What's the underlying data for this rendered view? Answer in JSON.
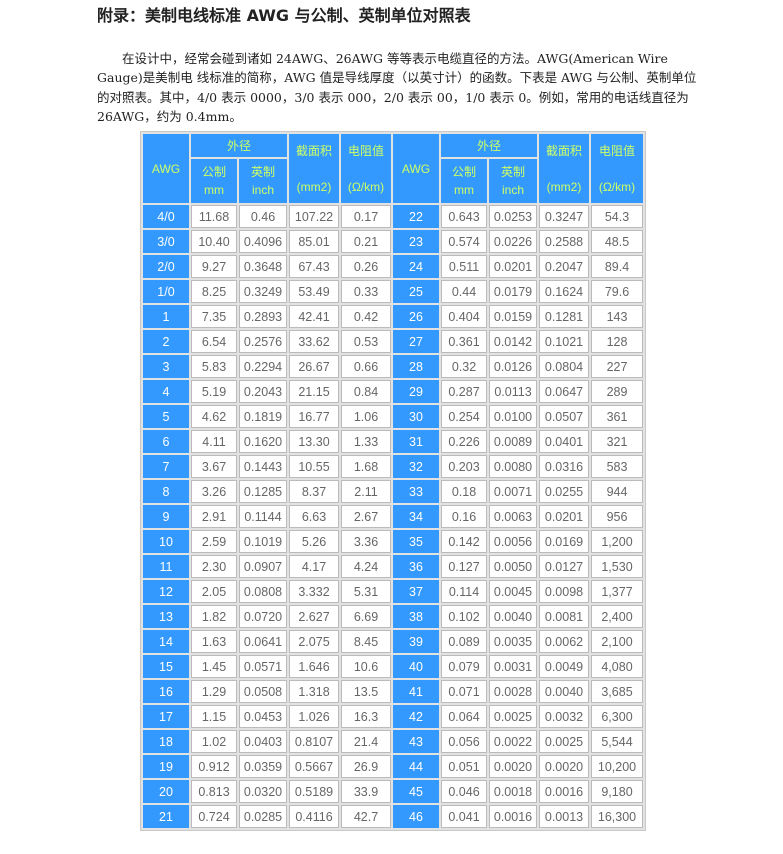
{
  "title": "附录：美制电线标准 AWG 与公制、英制单位对照表",
  "intro": "在设计中，经常会碰到诸如 24AWG、26AWG 等等表示电缆直径的方法。AWG(American Wire Gauge)是美制电 线标准的简称，AWG 值是导线厚度（以英寸计）的函数。下表是 AWG 与公制、英制单位的对照表。其中，4/0 表示 0000，3/0 表示 000，2/0 表示 00，1/0 表示 0。例如，常用的电话线直径为 26AWG，约为 0.4mm。",
  "headers": {
    "awg": "AWG",
    "od": "外径",
    "metric": "公制",
    "metric_unit": "mm",
    "imperial": "英制",
    "imperial_unit": "inch",
    "area": "截面积",
    "area_unit": "(mm2)",
    "res": "电阻值",
    "res_unit": "(Ω/km)"
  },
  "colors": {
    "header_bg": "#3399ff",
    "header_text": "#ccff66"
  },
  "rows": [
    [
      "4/0",
      "11.68",
      "0.46",
      "107.22",
      "0.17",
      "22",
      "0.643",
      "0.0253",
      "0.3247",
      "54.3"
    ],
    [
      "3/0",
      "10.40",
      "0.4096",
      "85.01",
      "0.21",
      "23",
      "0.574",
      "0.0226",
      "0.2588",
      "48.5"
    ],
    [
      "2/0",
      "9.27",
      "0.3648",
      "67.43",
      "0.26",
      "24",
      "0.511",
      "0.0201",
      "0.2047",
      "89.4"
    ],
    [
      "1/0",
      "8.25",
      "0.3249",
      "53.49",
      "0.33",
      "25",
      "0.44",
      "0.0179",
      "0.1624",
      "79.6"
    ],
    [
      "1",
      "7.35",
      "0.2893",
      "42.41",
      "0.42",
      "26",
      "0.404",
      "0.0159",
      "0.1281",
      "143"
    ],
    [
      "2",
      "6.54",
      "0.2576",
      "33.62",
      "0.53",
      "27",
      "0.361",
      "0.0142",
      "0.1021",
      "128"
    ],
    [
      "3",
      "5.83",
      "0.2294",
      "26.67",
      "0.66",
      "28",
      "0.32",
      "0.0126",
      "0.0804",
      "227"
    ],
    [
      "4",
      "5.19",
      "0.2043",
      "21.15",
      "0.84",
      "29",
      "0.287",
      "0.0113",
      "0.0647",
      "289"
    ],
    [
      "5",
      "4.62",
      "0.1819",
      "16.77",
      "1.06",
      "30",
      "0.254",
      "0.0100",
      "0.0507",
      "361"
    ],
    [
      "6",
      "4.11",
      "0.1620",
      "13.30",
      "1.33",
      "31",
      "0.226",
      "0.0089",
      "0.0401",
      "321"
    ],
    [
      "7",
      "3.67",
      "0.1443",
      "10.55",
      "1.68",
      "32",
      "0.203",
      "0.0080",
      "0.0316",
      "583"
    ],
    [
      "8",
      "3.26",
      "0.1285",
      "8.37",
      "2.11",
      "33",
      "0.18",
      "0.0071",
      "0.0255",
      "944"
    ],
    [
      "9",
      "2.91",
      "0.1144",
      "6.63",
      "2.67",
      "34",
      "0.16",
      "0.0063",
      "0.0201",
      "956"
    ],
    [
      "10",
      "2.59",
      "0.1019",
      "5.26",
      "3.36",
      "35",
      "0.142",
      "0.0056",
      "0.0169",
      "1,200"
    ],
    [
      "11",
      "2.30",
      "0.0907",
      "4.17",
      "4.24",
      "36",
      "0.127",
      "0.0050",
      "0.0127",
      "1,530"
    ],
    [
      "12",
      "2.05",
      "0.0808",
      "3.332",
      "5.31",
      "37",
      "0.114",
      "0.0045",
      "0.0098",
      "1,377"
    ],
    [
      "13",
      "1.82",
      "0.0720",
      "2.627",
      "6.69",
      "38",
      "0.102",
      "0.0040",
      "0.0081",
      "2,400"
    ],
    [
      "14",
      "1.63",
      "0.0641",
      "2.075",
      "8.45",
      "39",
      "0.089",
      "0.0035",
      "0.0062",
      "2,100"
    ],
    [
      "15",
      "1.45",
      "0.0571",
      "1.646",
      "10.6",
      "40",
      "0.079",
      "0.0031",
      "0.0049",
      "4,080"
    ],
    [
      "16",
      "1.29",
      "0.0508",
      "1.318",
      "13.5",
      "41",
      "0.071",
      "0.0028",
      "0.0040",
      "3,685"
    ],
    [
      "17",
      "1.15",
      "0.0453",
      "1.026",
      "16.3",
      "42",
      "0.064",
      "0.0025",
      "0.0032",
      "6,300"
    ],
    [
      "18",
      "1.02",
      "0.0403",
      "0.8107",
      "21.4",
      "43",
      "0.056",
      "0.0022",
      "0.0025",
      "5,544"
    ],
    [
      "19",
      "0.912",
      "0.0359",
      "0.5667",
      "26.9",
      "44",
      "0.051",
      "0.0020",
      "0.0020",
      "10,200"
    ],
    [
      "20",
      "0.813",
      "0.0320",
      "0.5189",
      "33.9",
      "45",
      "0.046",
      "0.0018",
      "0.0016",
      "9,180"
    ],
    [
      "21",
      "0.724",
      "0.0285",
      "0.4116",
      "42.7",
      "46",
      "0.041",
      "0.0016",
      "0.0013",
      "16,300"
    ]
  ]
}
